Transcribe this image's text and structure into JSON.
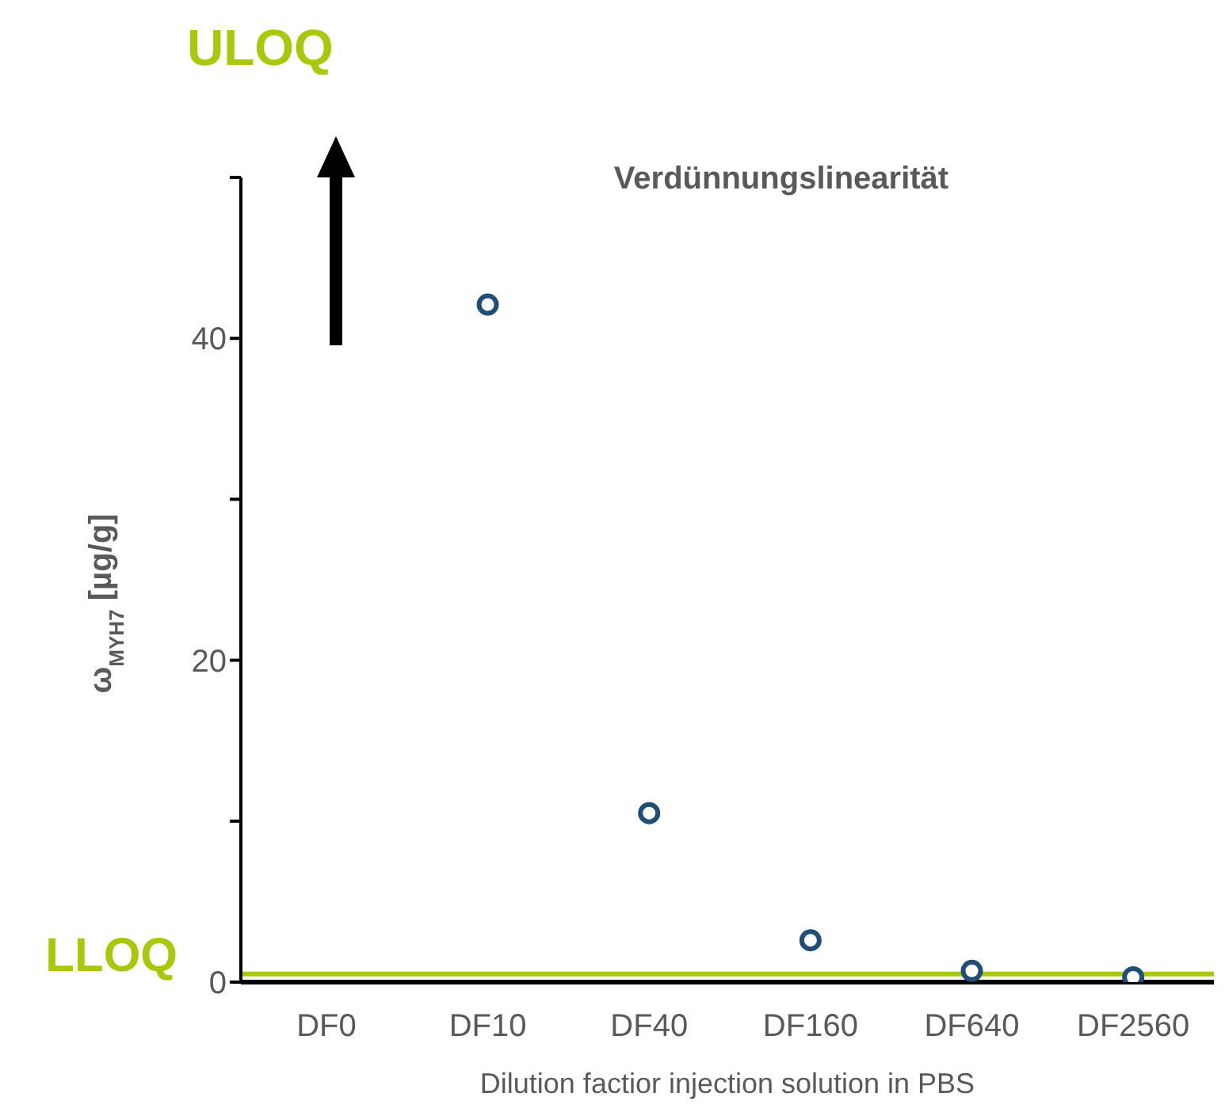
{
  "chart_data": {
    "type": "scatter",
    "title": "Verdünnungslinearität",
    "xlabel": "Dilution factior injection solution in PBS",
    "ylabel": "ω$_{MYH7}$ [µg/g]",
    "categories": [
      "DF0",
      "DF10",
      "DF40",
      "DF160",
      "DF640",
      "DF2560"
    ],
    "series": [
      {
        "color": "#1f4e79",
        "values": [
          null,
          42.1,
          10.5,
          2.6,
          0.7,
          0.3
        ]
      }
    ],
    "ylim": [
      0,
      50
    ],
    "yticks": [
      0,
      {
        "value": 10,
        "label": null
      },
      20,
      {
        "value": 30,
        "label": null
      },
      40,
      {
        "value": 50,
        "label": null
      }
    ],
    "ref_lines": [
      {
        "axis": "y",
        "value": 0.5,
        "label": "LLOQ",
        "color": "#a8c80a"
      }
    ],
    "annotations": [
      "ULOQ"
    ],
    "marker": "circle",
    "grid": false,
    "legend": false
  }
}
